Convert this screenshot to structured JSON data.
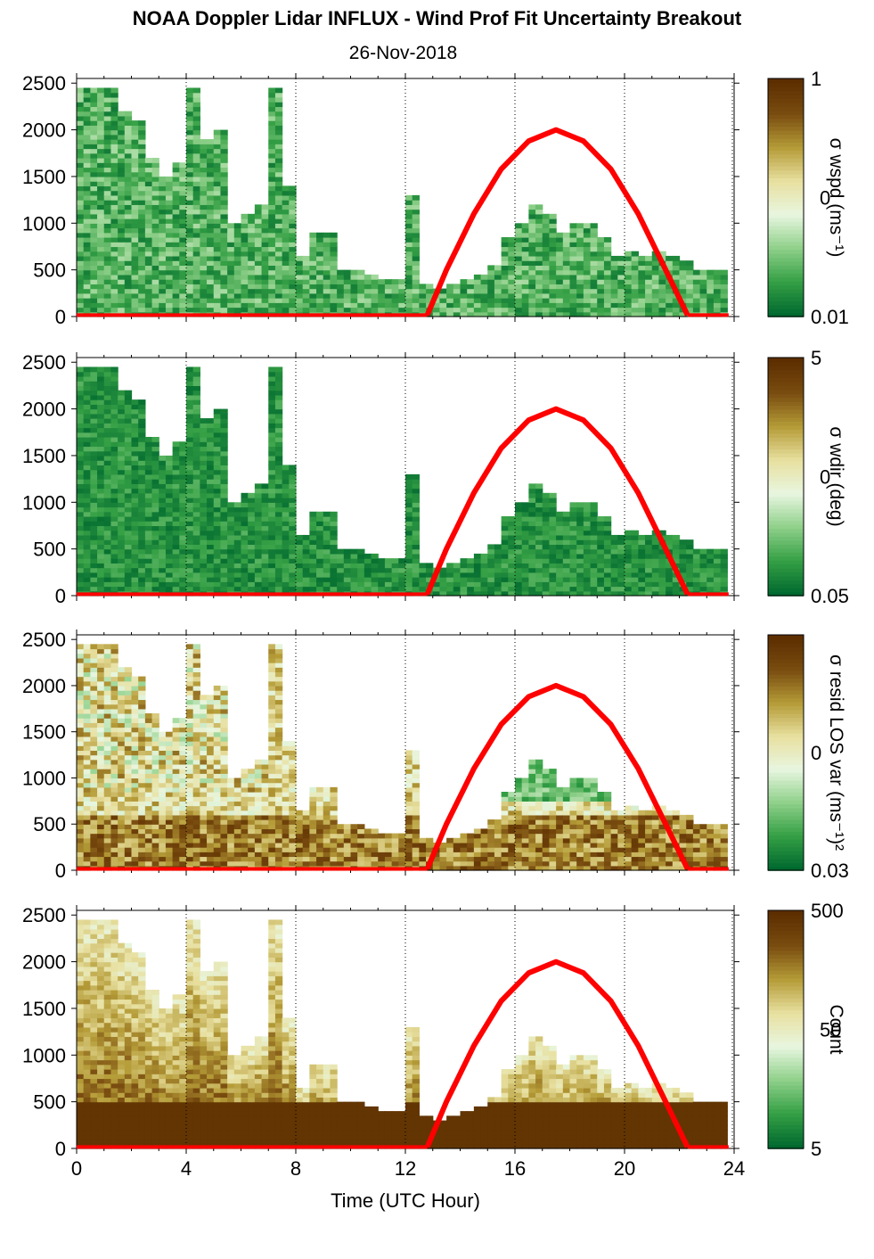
{
  "figure": {
    "title": "NOAA Doppler Lidar INFLUX - Wind Prof Fit Uncertainty Breakout",
    "subtitle": "26-Nov-2018",
    "xlabel": "Time (UTC Hour)"
  },
  "colors": {
    "sun_curve": "#ff0000",
    "colormap": [
      "#00692f",
      "#35a045",
      "#8fd08a",
      "#e8f6e0",
      "#e8e0a0",
      "#b59c38",
      "#7a4d10",
      "#5c2e00"
    ]
  },
  "chart_data": [
    {
      "type": "heatmap",
      "panel": "wspd",
      "x_ticks": [
        0,
        4,
        8,
        12,
        16,
        20,
        24
      ],
      "x_range": [
        0,
        24
      ],
      "y_ticks": [
        "0",
        "500",
        "1000",
        "1500",
        "2000",
        "2500"
      ],
      "y_range": [
        0,
        2550
      ],
      "gridlines": "vertical dotted at 4-hour ticks",
      "colorbar": {
        "label": "σ wspd (ms⁻¹)",
        "ticks": [
          "1",
          "0",
          "0.01"
        ],
        "scale": "log"
      },
      "data_top_envelope": {
        "hours": [
          0,
          0.5,
          1,
          1.5,
          2,
          2.5,
          3,
          3.5,
          4,
          4.5,
          5,
          5.5,
          6,
          6.5,
          7,
          7.5,
          8,
          8.5,
          9,
          9.5,
          10,
          10.5,
          11,
          11.5,
          12,
          12.5,
          13,
          13.5,
          14,
          14.5,
          15,
          15.5,
          16,
          16.5,
          17,
          17.5,
          18,
          18.5,
          19,
          19.5,
          20,
          20.5,
          21,
          21.5,
          22,
          22.5,
          23,
          23.5,
          24
        ],
        "height_m": [
          2450,
          2450,
          2450,
          2200,
          2100,
          1700,
          1500,
          1650,
          2450,
          1900,
          2000,
          1000,
          1100,
          1200,
          2450,
          1400,
          650,
          900,
          900,
          500,
          500,
          450,
          400,
          400,
          1300,
          350,
          300,
          350,
          400,
          450,
          550,
          850,
          1000,
          1200,
          1100,
          900,
          1000,
          1000,
          850,
          650,
          700,
          650,
          700,
          650,
          600,
          500,
          500,
          500,
          null
        ]
      },
      "sun_elevation_curve": {
        "hours": [
          12.8,
          13.5,
          14.5,
          15.5,
          16.5,
          17.5,
          18.5,
          19.5,
          20.5,
          21.5,
          22.3
        ],
        "height_m": [
          0,
          500,
          1100,
          1580,
          1880,
          2000,
          1880,
          1580,
          1100,
          500,
          0
        ]
      },
      "style": "green cells (low uncertainty) dominant"
    },
    {
      "type": "heatmap",
      "panel": "wdir",
      "x_ticks": [
        0,
        4,
        8,
        12,
        16,
        20,
        24
      ],
      "x_range": [
        0,
        24
      ],
      "y_ticks": [
        "0",
        "500",
        "1000",
        "1500",
        "2000",
        "2500"
      ],
      "y_range": [
        0,
        2550
      ],
      "gridlines": "vertical dotted at 4-hour ticks",
      "colorbar": {
        "label": "σ wdir (deg)",
        "ticks": [
          "5",
          "0",
          "0.05"
        ],
        "scale": "log"
      },
      "data_top_envelope": {
        "hours": [
          0,
          0.5,
          1,
          1.5,
          2,
          2.5,
          3,
          3.5,
          4,
          4.5,
          5,
          5.5,
          6,
          6.5,
          7,
          7.5,
          8,
          8.5,
          9,
          9.5,
          10,
          10.5,
          11,
          11.5,
          12,
          12.5,
          13,
          13.5,
          14,
          14.5,
          15,
          15.5,
          16,
          16.5,
          17,
          17.5,
          18,
          18.5,
          19,
          19.5,
          20,
          20.5,
          21,
          21.5,
          22,
          22.5,
          23,
          23.5,
          24
        ],
        "height_m": [
          2450,
          2450,
          2450,
          2200,
          2100,
          1700,
          1500,
          1650,
          2450,
          1900,
          2000,
          1000,
          1100,
          1200,
          2450,
          1400,
          650,
          900,
          900,
          500,
          500,
          450,
          400,
          400,
          1300,
          350,
          300,
          350,
          400,
          450,
          550,
          850,
          1000,
          1200,
          1100,
          900,
          1000,
          1000,
          850,
          650,
          700,
          650,
          700,
          650,
          600,
          500,
          500,
          500,
          null
        ]
      },
      "sun_elevation_curve": {
        "hours": [
          12.8,
          13.5,
          14.5,
          15.5,
          16.5,
          17.5,
          18.5,
          19.5,
          20.5,
          21.5,
          22.3
        ],
        "height_m": [
          0,
          500,
          1100,
          1580,
          1880,
          2000,
          1880,
          1580,
          1100,
          500,
          0
        ]
      },
      "style": "dark green cells dominant"
    },
    {
      "type": "heatmap",
      "panel": "resid LOS var",
      "x_ticks": [
        0,
        4,
        8,
        12,
        16,
        20,
        24
      ],
      "x_range": [
        0,
        24
      ],
      "y_ticks": [
        "0",
        "500",
        "1000",
        "1500",
        "2000",
        "2500"
      ],
      "y_range": [
        0,
        2550
      ],
      "gridlines": "vertical dotted at 4-hour ticks",
      "colorbar": {
        "label": "σ resid LOS var (ms⁻¹)²",
        "ticks": [
          "0",
          "0.03"
        ],
        "scale": "log"
      },
      "data_top_envelope": {
        "hours": [
          0,
          0.5,
          1,
          1.5,
          2,
          2.5,
          3,
          3.5,
          4,
          4.5,
          5,
          5.5,
          6,
          6.5,
          7,
          7.5,
          8,
          8.5,
          9,
          9.5,
          10,
          10.5,
          11,
          11.5,
          12,
          12.5,
          13,
          13.5,
          14,
          14.5,
          15,
          15.5,
          16,
          16.5,
          17,
          17.5,
          18,
          18.5,
          19,
          19.5,
          20,
          20.5,
          21,
          21.5,
          22,
          22.5,
          23,
          23.5,
          24
        ],
        "height_m": [
          2450,
          2450,
          2450,
          2200,
          2100,
          1700,
          1500,
          1650,
          2450,
          1900,
          2000,
          1000,
          1100,
          1200,
          2450,
          1400,
          650,
          900,
          900,
          500,
          500,
          450,
          400,
          400,
          1300,
          350,
          300,
          350,
          400,
          450,
          550,
          850,
          1000,
          1200,
          1100,
          900,
          1000,
          1000,
          850,
          650,
          700,
          650,
          700,
          650,
          600,
          500,
          500,
          500,
          null
        ]
      },
      "sun_elevation_curve": {
        "hours": [
          12.8,
          13.5,
          14.5,
          15.5,
          16.5,
          17.5,
          18.5,
          19.5,
          20.5,
          21.5,
          22.3
        ],
        "height_m": [
          0,
          500,
          1100,
          1580,
          1880,
          2000,
          1880,
          1580,
          1100,
          500,
          0
        ]
      },
      "style": "tan/brown near ground, green aloft"
    },
    {
      "type": "heatmap",
      "panel": "count",
      "x_ticks": [
        0,
        4,
        8,
        12,
        16,
        20,
        24
      ],
      "x_range": [
        0,
        24
      ],
      "y_ticks": [
        "0",
        "500",
        "1000",
        "1500",
        "2000",
        "2500"
      ],
      "y_range": [
        0,
        2550
      ],
      "gridlines": "vertical dotted at 4-hour ticks",
      "colorbar": {
        "label": "Count",
        "ticks": [
          "500",
          "50",
          "5"
        ],
        "scale": "log"
      },
      "data_top_envelope": {
        "hours": [
          0,
          0.5,
          1,
          1.5,
          2,
          2.5,
          3,
          3.5,
          4,
          4.5,
          5,
          5.5,
          6,
          6.5,
          7,
          7.5,
          8,
          8.5,
          9,
          9.5,
          10,
          10.5,
          11,
          11.5,
          12,
          12.5,
          13,
          13.5,
          14,
          14.5,
          15,
          15.5,
          16,
          16.5,
          17,
          17.5,
          18,
          18.5,
          19,
          19.5,
          20,
          20.5,
          21,
          21.5,
          22,
          22.5,
          23,
          23.5,
          24
        ],
        "height_m": [
          2450,
          2450,
          2450,
          2200,
          2100,
          1700,
          1500,
          1650,
          2450,
          1900,
          2000,
          1000,
          1100,
          1200,
          2450,
          1400,
          650,
          900,
          900,
          500,
          500,
          450,
          400,
          400,
          1300,
          350,
          300,
          350,
          400,
          450,
          550,
          850,
          1000,
          1200,
          1100,
          900,
          1000,
          1000,
          850,
          650,
          700,
          650,
          700,
          650,
          600,
          500,
          500,
          500,
          null
        ]
      },
      "sun_elevation_curve": {
        "hours": [
          12.8,
          13.5,
          14.5,
          15.5,
          16.5,
          17.5,
          18.5,
          19.5,
          20.5,
          21.5,
          22.3
        ],
        "height_m": [
          0,
          500,
          1100,
          1580,
          1880,
          2000,
          1880,
          1580,
          1100,
          500,
          0
        ]
      },
      "style": "dark brown (high count) near ground"
    }
  ]
}
